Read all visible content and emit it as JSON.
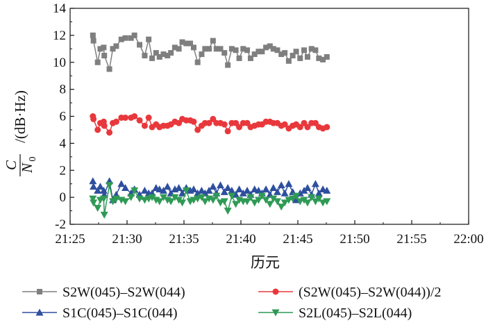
{
  "chart_data": {
    "type": "line",
    "xlabel": "历元",
    "ylabel": {
      "fraction_numerator": "C",
      "fraction_denominator": "N",
      "denominator_subscript": "0",
      "unit": "/(dB·Hz)"
    },
    "x_ticks": [
      "21:25",
      "21:30",
      "21:35",
      "21:40",
      "21:45",
      "21:50",
      "21:55",
      "22:00"
    ],
    "y_ticks": [
      "-2",
      "0",
      "2",
      "4",
      "6",
      "8",
      "10",
      "12",
      "14"
    ],
    "xlim_minutes": [
      25,
      60
    ],
    "ylim": [
      -2,
      14
    ],
    "x_minutes": [
      27,
      27,
      28,
      28,
      29,
      29,
      30,
      30,
      31,
      31,
      32,
      33,
      33,
      34,
      34,
      35,
      35,
      36,
      36,
      37,
      37,
      38,
      38,
      39,
      39,
      40,
      40,
      41,
      41,
      42,
      42,
      43,
      43,
      44,
      44,
      45,
      45,
      46,
      46,
      47,
      47,
      48,
      48,
      49,
      49,
      50,
      50,
      51,
      51,
      52,
      52,
      53,
      53,
      54,
      54,
      55,
      55,
      56,
      56,
      57,
      57,
      58,
      58
    ],
    "x_offsets": [
      0.0,
      0.05,
      0.42,
      0.65,
      0.95,
      1.0,
      1.45,
      1.75,
      2.05,
      2.5,
      2.85,
      3.35,
      3.65,
      4.1,
      4.55,
      4.9,
      5.2,
      5.55,
      5.85,
      6.2,
      6.55,
      6.85,
      7.2,
      7.55,
      7.85,
      8.2,
      8.55,
      8.85,
      9.2,
      9.55,
      9.85,
      10.2,
      10.55,
      10.85,
      11.2,
      11.55,
      11.85,
      12.2,
      12.55,
      12.85,
      13.2,
      13.55,
      13.85,
      14.2,
      14.55,
      14.85,
      15.2,
      15.55,
      15.85,
      16.2,
      16.55,
      16.85,
      17.2,
      17.55,
      17.85,
      18.2,
      18.55,
      18.85,
      19.2,
      19.55,
      19.85,
      20.2,
      20.55
    ],
    "series": [
      {
        "name": "S2W(045)–S2W(044)",
        "color": "#7f7f7f",
        "marker": "square",
        "values": [
          12.0,
          11.6,
          10.0,
          11.0,
          11.1,
          10.5,
          9.5,
          11.0,
          11.2,
          11.7,
          11.8,
          11.8,
          12.0,
          11.3,
          10.5,
          11.7,
          10.3,
          10.7,
          10.4,
          10.6,
          10.5,
          10.7,
          11.1,
          11.0,
          11.5,
          11.4,
          11.4,
          11.1,
          10.0,
          10.6,
          11.0,
          11.0,
          11.6,
          11.0,
          11.0,
          10.7,
          9.8,
          11.0,
          10.9,
          10.3,
          11.0,
          10.9,
          10.3,
          10.6,
          10.8,
          10.8,
          11.1,
          11.2,
          11.0,
          10.9,
          10.6,
          10.7,
          10.1,
          10.5,
          10.8,
          10.3,
          10.9,
          10.4,
          11.0,
          10.9,
          10.3,
          10.2,
          10.4
        ]
      },
      {
        "name": "(S2W(045)–S2W(044))/2",
        "color": "#e8383c",
        "marker": "circle",
        "values": [
          6.0,
          5.8,
          5.0,
          5.5,
          5.6,
          5.3,
          4.8,
          5.5,
          5.6,
          5.9,
          5.9,
          5.9,
          6.0,
          5.7,
          5.3,
          5.9,
          5.2,
          5.4,
          5.2,
          5.3,
          5.3,
          5.4,
          5.6,
          5.5,
          5.8,
          5.7,
          5.7,
          5.6,
          5.0,
          5.3,
          5.5,
          5.5,
          5.8,
          5.5,
          5.5,
          5.4,
          4.9,
          5.5,
          5.5,
          5.2,
          5.5,
          5.5,
          5.2,
          5.3,
          5.4,
          5.4,
          5.6,
          5.6,
          5.5,
          5.5,
          5.3,
          5.4,
          5.1,
          5.3,
          5.4,
          5.2,
          5.5,
          5.2,
          5.5,
          5.5,
          5.2,
          5.1,
          5.2
        ]
      },
      {
        "name": "S1C(045)–S1C(044)",
        "color": "#2e4f9e",
        "marker": "triangle-up",
        "values": [
          1.2,
          0.8,
          0.5,
          0.8,
          0.5,
          0.2,
          1.2,
          -0.2,
          0.2,
          1.0,
          0.7,
          0.3,
          0.6,
          0.2,
          0.5,
          0.3,
          0.3,
          0.7,
          0.6,
          0.5,
          0.8,
          0.3,
          0.6,
          0.7,
          0.3,
          0.7,
          0.5,
          0.6,
          0.3,
          0.5,
          0.3,
          0.5,
          0.8,
          0.3,
          0.9,
          0.4,
          0.7,
          0.5,
          0.2,
          0.6,
          0.3,
          0.5,
          0.2,
          0.6,
          0.5,
          0.3,
          0.6,
          0.2,
          0.7,
          0.4,
          0.9,
          0.3,
          1.0,
          0.4,
          -0.2,
          0.3,
          0.5,
          0.7,
          0.2,
          1.0,
          0.3,
          0.6,
          0.5
        ]
      },
      {
        "name": "S2L(045)–S2L(044)",
        "color": "#2f9a55",
        "marker": "triangle-down",
        "values": [
          -0.1,
          -0.4,
          -0.8,
          -0.2,
          -0.1,
          -1.3,
          0.9,
          -0.3,
          -0.1,
          -0.2,
          -0.3,
          0.0,
          0.5,
          -0.1,
          -0.2,
          -0.1,
          0.0,
          -0.2,
          -0.3,
          0.0,
          -0.2,
          -0.3,
          0.0,
          -0.2,
          -0.4,
          0.5,
          -0.3,
          -0.2,
          -0.1,
          0.0,
          -0.3,
          -0.1,
          -0.2,
          0.1,
          -0.4,
          -0.3,
          -1.0,
          0.1,
          -0.5,
          -0.2,
          -0.3,
          -0.3,
          0.0,
          -0.4,
          -0.2,
          0.1,
          -0.2,
          -0.5,
          -0.1,
          -0.3,
          -0.7,
          -0.4,
          -0.2,
          -0.1,
          0.1,
          -0.3,
          -0.2,
          -0.4,
          0.0,
          -0.3,
          -0.1,
          -0.4,
          -0.3
        ]
      }
    ],
    "legend": [
      {
        "label": "S2W(045)–S2W(044)",
        "series": 0
      },
      {
        "label": "(S2W(045)–S2W(044))/2",
        "series": 1
      },
      {
        "label": "S1C(045)–S1C(044)",
        "series": 2
      },
      {
        "label": "S2L(045)–S2L(044)",
        "series": 3
      }
    ]
  }
}
